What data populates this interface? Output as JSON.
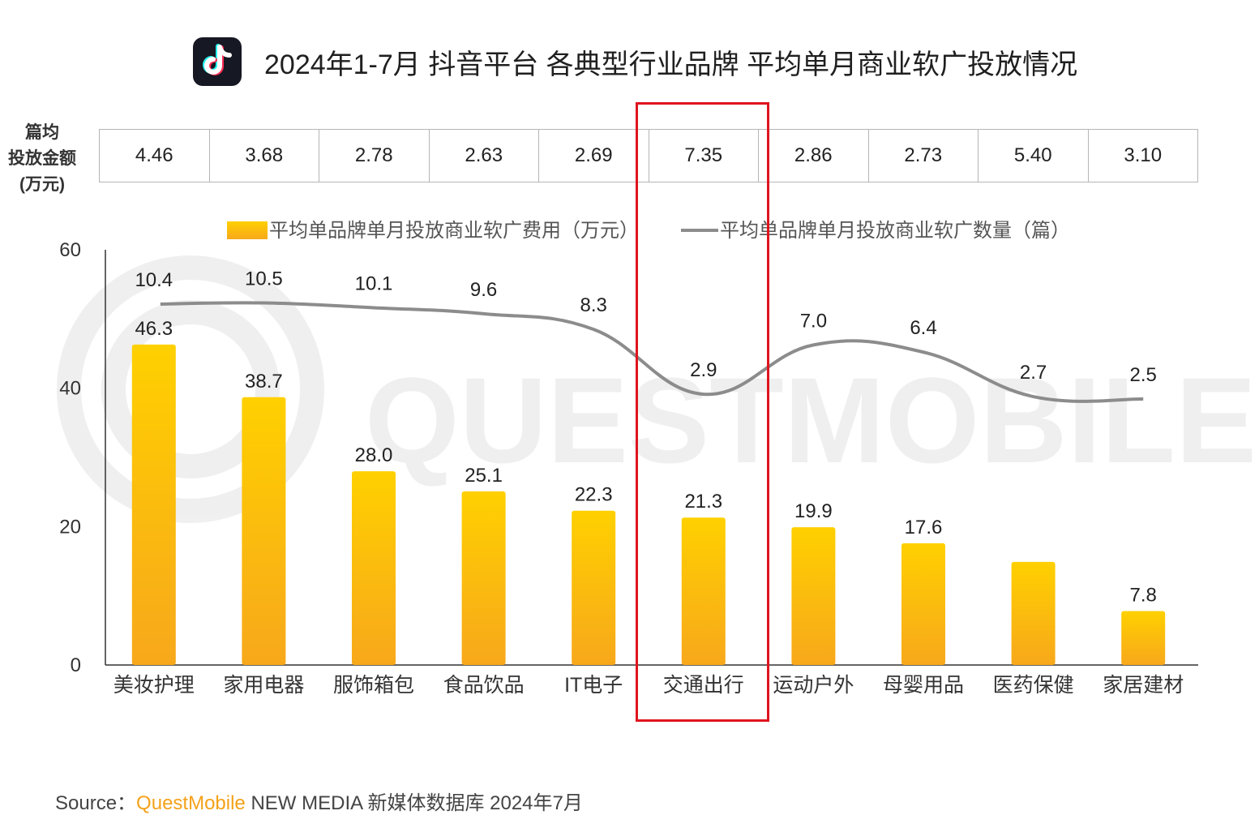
{
  "header": {
    "title": "2024年1-7月 抖音平台 各典型行业品牌 平均单月商业软广投放情况",
    "logo_icon": "tiktok-logo-icon"
  },
  "table": {
    "row_label_lines": [
      "篇均",
      "投放金额",
      "(万元)"
    ],
    "values": [
      "4.46",
      "3.68",
      "2.78",
      "2.63",
      "2.69",
      "7.35",
      "2.86",
      "2.73",
      "5.40",
      "3.10"
    ]
  },
  "legend": {
    "bar": "平均单品牌单月投放商业软广费用（万元）",
    "line": "平均单品牌单月投放商业软广数量（篇）"
  },
  "chart_data": {
    "type": "bar",
    "categories": [
      "美妆护理",
      "家用电器",
      "服饰箱包",
      "食品饮品",
      "IT电子",
      "交通出行",
      "运动户外",
      "母婴用品",
      "医药保健",
      "家居建材"
    ],
    "series": [
      {
        "name": "平均单品牌单月投放商业软广费用（万元）",
        "type": "bar",
        "values": [
          46.3,
          38.7,
          28.0,
          25.1,
          22.3,
          21.3,
          19.9,
          17.6,
          14.9,
          7.8
        ],
        "labels": [
          "46.3",
          "38.7",
          "28.0",
          "25.1",
          "22.3",
          "21.3",
          "19.9",
          "17.6",
          "",
          "7.8"
        ]
      },
      {
        "name": "平均单品牌单月投放商业软广数量（篇）",
        "type": "line",
        "values": [
          10.4,
          10.5,
          10.1,
          9.6,
          8.3,
          2.9,
          7.0,
          6.4,
          2.7,
          2.5
        ],
        "labels": [
          "10.4",
          "10.5",
          "10.1",
          "9.6",
          "8.3",
          "2.9",
          "7.0",
          "6.4",
          "2.7",
          "2.5"
        ]
      }
    ],
    "yticks": [
      "0",
      "20",
      "40",
      "60"
    ],
    "ylim": [
      0,
      60
    ],
    "bar_color_top": "#ffd000",
    "bar_color_bottom": "#f7a81b",
    "line_color": "#8c8c8c",
    "highlight_category": "交通出行",
    "highlight_color": "#e0141e",
    "watermark": "QUESTMOBILE"
  },
  "source": {
    "label": "Source：",
    "brand": "QuestMobile",
    "rest": " NEW MEDIA 新媒体数据库 2024年7月"
  }
}
